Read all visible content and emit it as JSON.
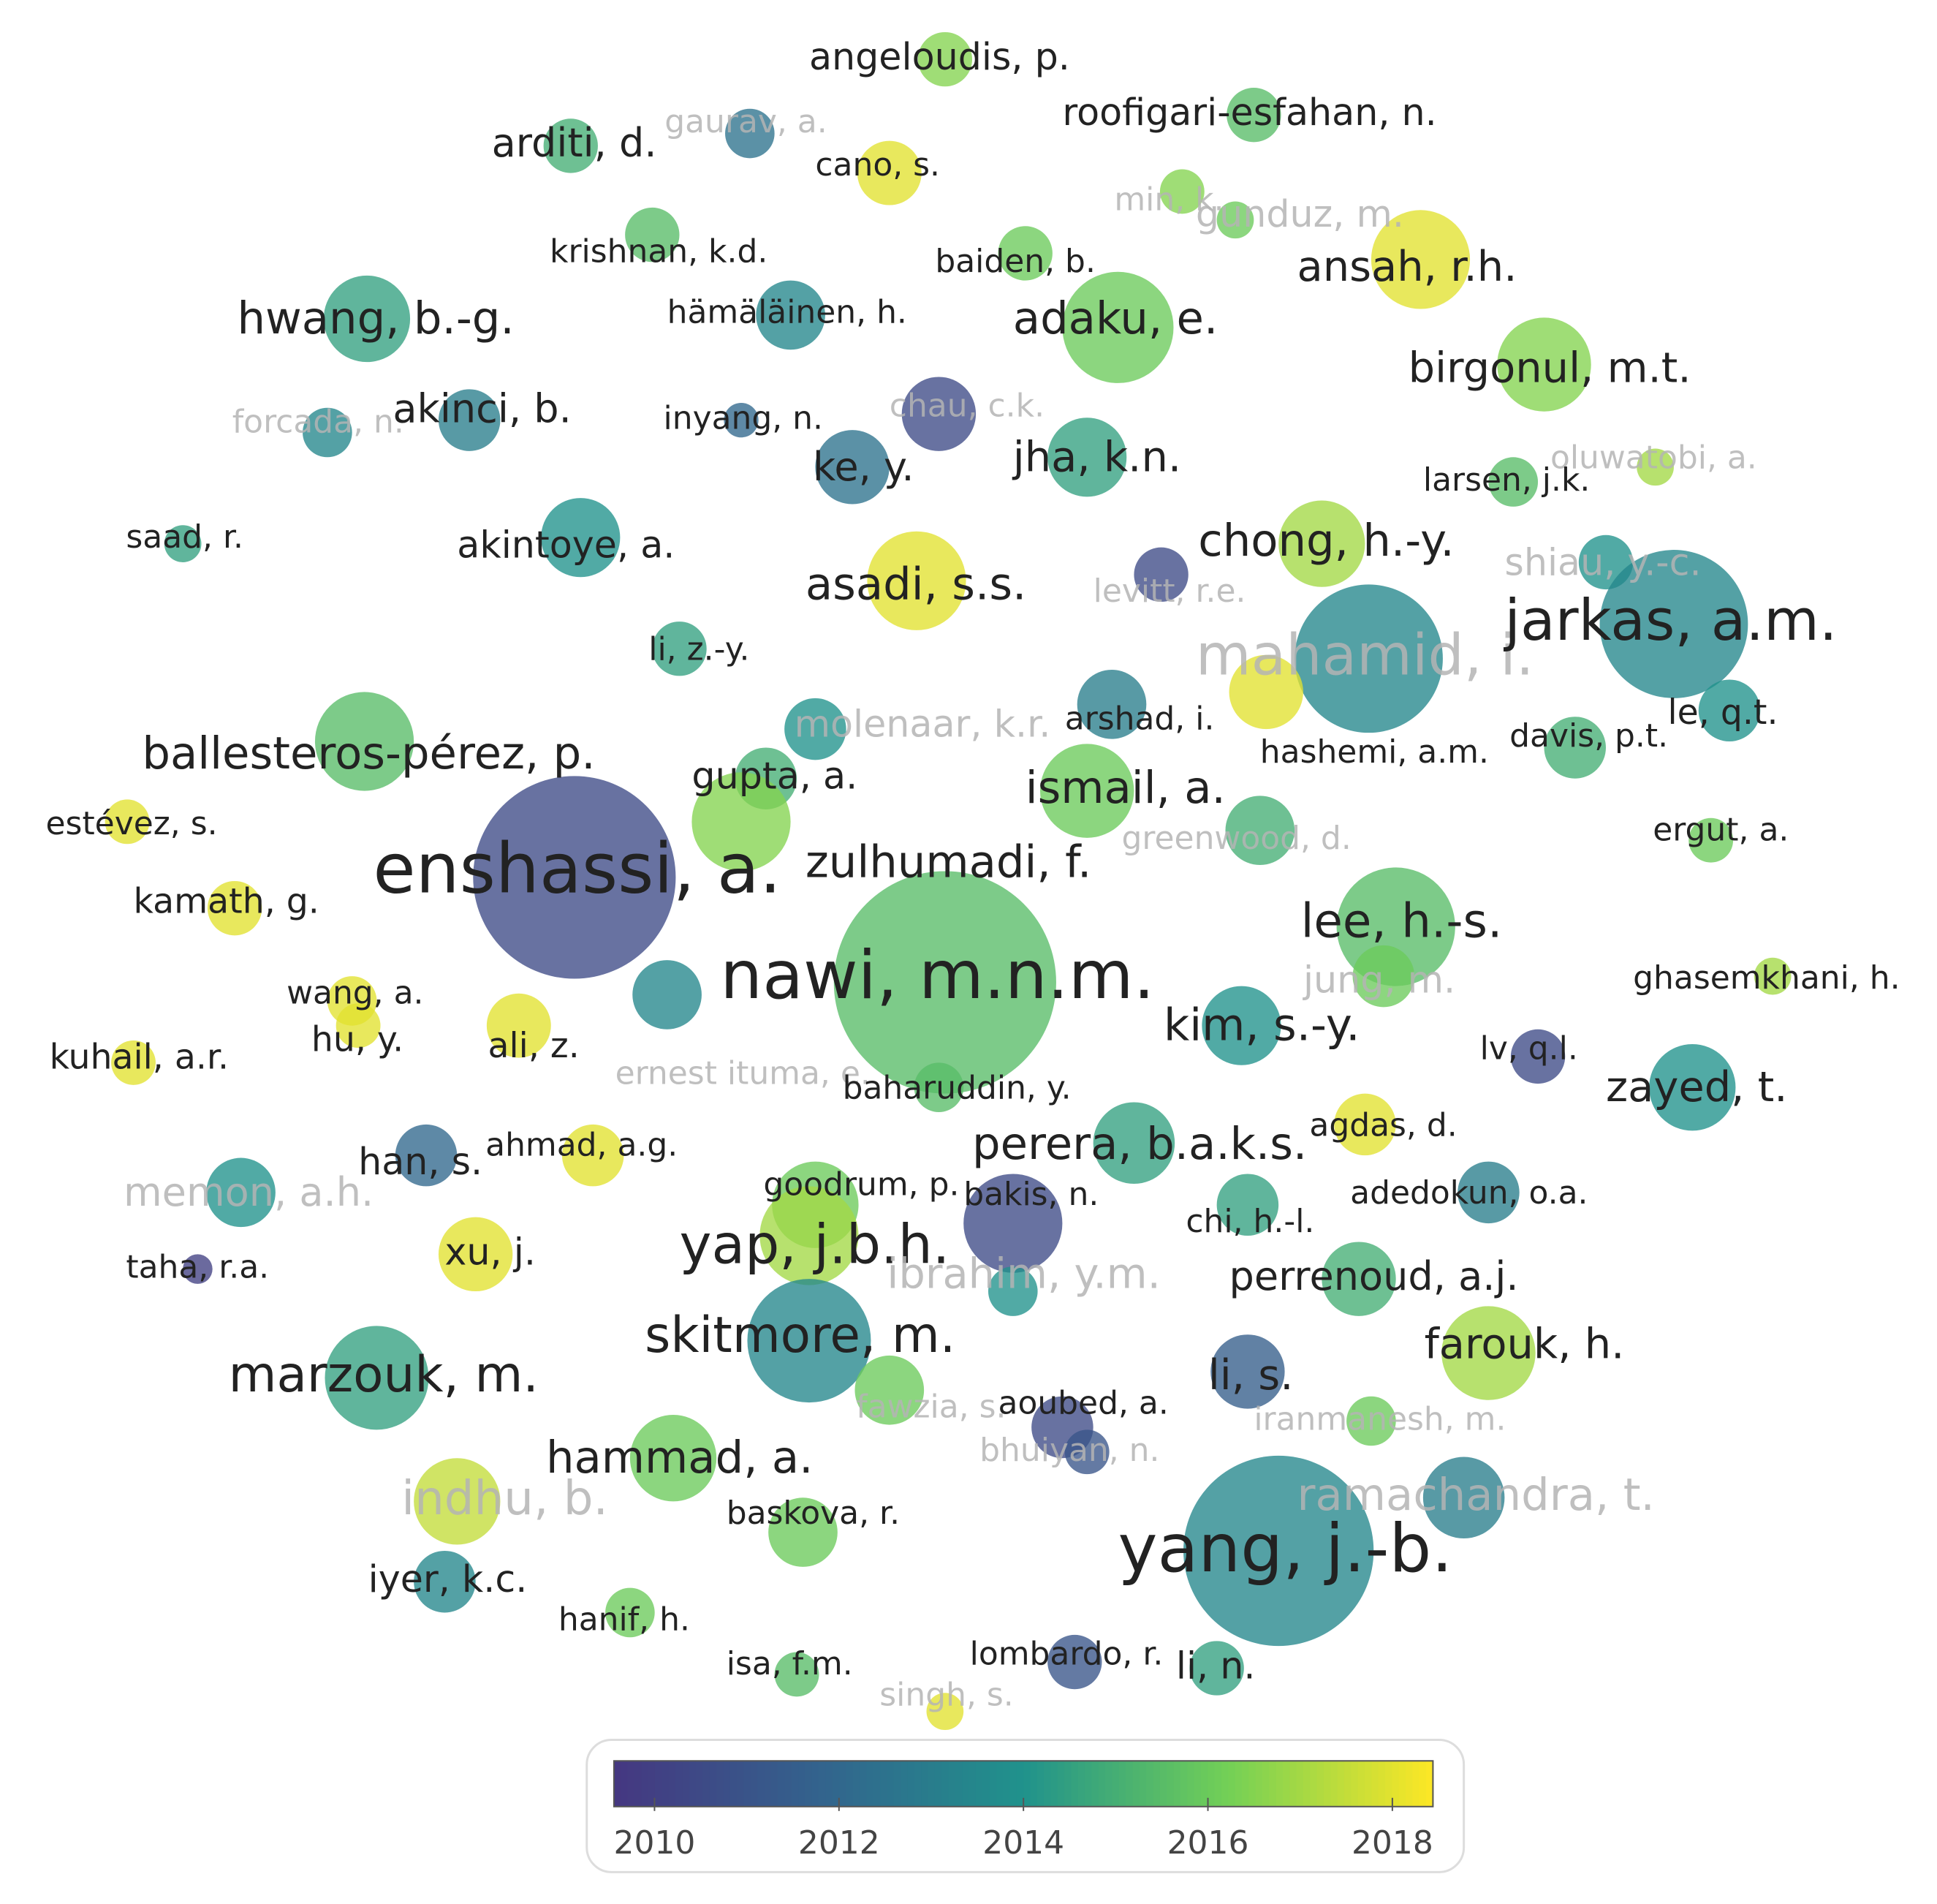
{
  "nodes": [
    {
      "label": "angeloudis, p.",
      "year": 2016.5
    },
    {
      "label": "roofigari-esfahan, n.",
      "year": 2015.5
    },
    {
      "label": "arditi, d.",
      "year": 2015
    },
    {
      "label": "gaurav, a.",
      "year": 2012.5
    },
    {
      "label": "cano, s.",
      "year": 2018
    },
    {
      "label": "min, k.",
      "year": 2016.5
    },
    {
      "label": "gunduz, m.",
      "year": 2016
    },
    {
      "label": "ansah, r.h.",
      "year": 2018
    },
    {
      "label": "krishnan, k.d.",
      "year": 2015.5
    },
    {
      "label": "baiden, b.",
      "year": 2016
    },
    {
      "label": "hwang, b.-g.",
      "year": 2014.5
    },
    {
      "label": "hämäläinen, h.",
      "year": 2013.5
    },
    {
      "label": "adaku, e.",
      "year": 2016
    },
    {
      "label": "birgonul, m.t.",
      "year": 2016.5
    },
    {
      "label": "forcada, n.",
      "year": 2013.5
    },
    {
      "label": "akinci, b.",
      "year": 2013
    },
    {
      "label": "inyang, n.",
      "year": 2012
    },
    {
      "label": "chau, c.k.",
      "year": 2010.5
    },
    {
      "label": "ke, y.",
      "year": 2012.5
    },
    {
      "label": "jha, k.n.",
      "year": 2014.5
    },
    {
      "label": "oluwatobi, a.",
      "year": 2017
    },
    {
      "label": "larsen, j.k.",
      "year": 2015.5
    },
    {
      "label": "saad, r.",
      "year": 2014.5
    },
    {
      "label": "akintoye, a.",
      "year": 2014
    },
    {
      "label": "asadi, s.s.",
      "year": 2018
    },
    {
      "label": "levitt, r.e.",
      "year": 2010.5
    },
    {
      "label": "chong, h.-y.",
      "year": 2017
    },
    {
      "label": "shiau, y.-c.",
      "year": 2014
    },
    {
      "label": "mahamid, i.",
      "year": 2013.5
    },
    {
      "label": "jarkas, a.m.",
      "year": 2013.5
    },
    {
      "label": "li, z.-y.",
      "year": 2014.5
    },
    {
      "label": "molenaar, k.r.",
      "year": 2014
    },
    {
      "label": "arshad, i.",
      "year": 2013
    },
    {
      "label": "ballesteros-pérez, p.",
      "year": 2015.5
    },
    {
      "label": "hashemi, a.m.",
      "year": 2018
    },
    {
      "label": "davis, p.t.",
      "year": 2015
    },
    {
      "label": "le, q.t.",
      "year": 2014
    },
    {
      "label": "gupta, a.",
      "year": 2015
    },
    {
      "label": "ismail, a.",
      "year": 2016
    },
    {
      "label": "estévez, s.",
      "year": 2018
    },
    {
      "label": "ergut, a.",
      "year": 2016
    },
    {
      "label": "greenwood, d.",
      "year": 2015
    },
    {
      "label": "enshassi, a.",
      "year": 2010.5
    },
    {
      "label": "zulhumadi, f.",
      "year": 2016.5
    },
    {
      "label": "kamath, g.",
      "year": 2018
    },
    {
      "label": "lee, h.-s.",
      "year": 2015.5
    },
    {
      "label": "nawi, m.n.m.",
      "year": 2015.5
    },
    {
      "label": "wang, a.",
      "year": 2018
    },
    {
      "label": "jung, m.",
      "year": 2016
    },
    {
      "label": "ghasemkhani, h.",
      "year": 2017
    },
    {
      "label": "kuhail, a.r.",
      "year": 2018
    },
    {
      "label": "hu, y.",
      "year": 2018
    },
    {
      "label": "ali, z.",
      "year": 2018
    },
    {
      "label": "kim, s.-y.",
      "year": 2014
    },
    {
      "label": "lv, q.l.",
      "year": 2010.5
    },
    {
      "label": "ernest ituma, e.",
      "year": 2013.5
    },
    {
      "label": "baharuddin, y.",
      "year": 2015.5
    },
    {
      "label": "zayed, t.",
      "year": 2014
    },
    {
      "label": "agdas, d.",
      "year": 2018
    },
    {
      "label": "perera, b.a.k.s.",
      "year": 2014.5
    },
    {
      "label": "ahmad, a.g.",
      "year": 2018
    },
    {
      "label": "han, s.",
      "year": 2012
    },
    {
      "label": "memon, a.h.",
      "year": 2014
    },
    {
      "label": "goodrum, p.",
      "year": 2016
    },
    {
      "label": "bakis, n.",
      "year": 2010.5
    },
    {
      "label": "adedokun, o.a.",
      "year": 2013
    },
    {
      "label": "chi, h.-l.",
      "year": 2014.5
    },
    {
      "label": "taha, r.a.",
      "year": 2010
    },
    {
      "label": "xu, j.",
      "year": 2018
    },
    {
      "label": "yap, j.b.h.",
      "year": 2017
    },
    {
      "label": "ibrahim, y.m.",
      "year": 2014
    },
    {
      "label": "perrenoud, a.j.",
      "year": 2015
    },
    {
      "label": "skitmore, m.",
      "year": 2013.5
    },
    {
      "label": "marzouk, m.",
      "year": 2014.5
    },
    {
      "label": "farouk, h.",
      "year": 2017
    },
    {
      "label": "li, s.",
      "year": 2011.5
    },
    {
      "label": "fawzia, s.",
      "year": 2016
    },
    {
      "label": "aoubed, a.",
      "year": 2010.5
    },
    {
      "label": "bhuiyan, n.",
      "year": 2011
    },
    {
      "label": "iranmanesh, m.",
      "year": 2016
    },
    {
      "label": "hammad, a.",
      "year": 2016
    },
    {
      "label": "indhu, b.",
      "year": 2017.5
    },
    {
      "label": "baskova, r.",
      "year": 2016
    },
    {
      "label": "yang, j.-b.",
      "year": 2013.5
    },
    {
      "label": "iyer, k.c.",
      "year": 2013.5
    },
    {
      "label": "hanif, h.",
      "year": 2016
    },
    {
      "label": "isa, f.m.",
      "year": 2015.5
    },
    {
      "label": "lombardo, r.",
      "year": 2011
    },
    {
      "label": "li, n.",
      "year": 2014.5
    },
    {
      "label": "singh, s.",
      "year": 2018
    },
    {
      "label": "ramachandra, t.",
      "year": 2013
    }
  ],
  "colorbar": {
    "range": [
      2009.56,
      2018.44
    ],
    "ticks": [
      2010,
      2012,
      2014,
      2016,
      2018
    ]
  }
}
